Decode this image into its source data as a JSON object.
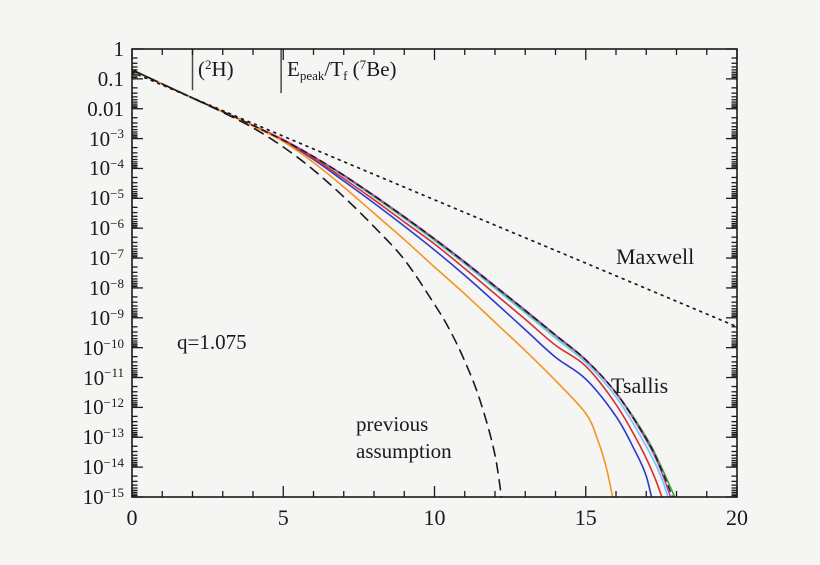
{
  "chart_data": {
    "type": "line",
    "title": "",
    "xlabel": "",
    "ylabel": "",
    "xlim": [
      0,
      20
    ],
    "ylog_lim": [
      -15,
      0
    ],
    "grid": false,
    "x_ticks": [
      0,
      5,
      10,
      15,
      20
    ],
    "x_minor_step": 1,
    "y_tick_labels": [
      {
        "t": "1"
      },
      {
        "t": "0.1"
      },
      {
        "t": "0.01"
      },
      {
        "base": "10",
        "exp": "−3"
      },
      {
        "base": "10",
        "exp": "−4"
      },
      {
        "base": "10",
        "exp": "−5"
      },
      {
        "base": "10",
        "exp": "−6"
      },
      {
        "base": "10",
        "exp": "−7"
      },
      {
        "base": "10",
        "exp": "−8"
      },
      {
        "base": "10",
        "exp": "−9"
      },
      {
        "base": "10",
        "exp": "−10"
      },
      {
        "base": "10",
        "exp": "−11"
      },
      {
        "base": "10",
        "exp": "−12"
      },
      {
        "base": "10",
        "exp": "−13"
      },
      {
        "base": "10",
        "exp": "−14"
      },
      {
        "base": "10",
        "exp": "−15"
      }
    ],
    "annotations": {
      "q_label": "q=1.075",
      "maxwell_label": "Maxwell",
      "tsallis_label": "Tsallis",
      "prev_line1": "previous",
      "prev_line2": "assumption",
      "marker_h2": {
        "parts": [
          {
            "t": "("
          },
          {
            "sup": "2"
          },
          {
            "t": "H)"
          }
        ]
      },
      "marker_epeak": {
        "parts": [
          {
            "t": "E"
          },
          {
            "sub": "peak"
          },
          {
            "t": "/T"
          },
          {
            "sub": "f"
          },
          {
            "t": " ("
          },
          {
            "sup": "7"
          },
          {
            "t": "Be)"
          }
        ]
      }
    },
    "markers": [
      {
        "name": "gamow-peak-2H",
        "x": 2.0,
        "log10_top": 0,
        "log10_bottom": -1.38
      },
      {
        "name": "gamow-peak-7Be",
        "x": 4.93,
        "log10_top": 0,
        "log10_bottom": -1.48
      }
    ],
    "series": [
      {
        "name": "tsallis-cyan",
        "color": "#6fcaf2",
        "dash": "",
        "width": 1.6,
        "points": [
          [
            0,
            -0.7
          ],
          [
            1,
            -1.17
          ],
          [
            2,
            -1.64
          ],
          [
            3,
            -2.1
          ],
          [
            4,
            -2.56
          ],
          [
            5,
            -3.04
          ],
          [
            6,
            -3.62
          ],
          [
            7,
            -4.26
          ],
          [
            8,
            -4.95
          ],
          [
            9,
            -5.67
          ],
          [
            10,
            -6.42
          ],
          [
            11,
            -7.2
          ],
          [
            12,
            -8.02
          ],
          [
            13,
            -8.84
          ],
          [
            14,
            -9.68
          ],
          [
            15,
            -10.5
          ],
          [
            16,
            -11.65
          ],
          [
            17,
            -13.3
          ],
          [
            17.5,
            -14.35
          ],
          [
            17.9,
            -15.6
          ]
        ]
      },
      {
        "name": "tsallis-green",
        "color": "#3ba43a",
        "dash": "",
        "width": 1.6,
        "points": [
          [
            0,
            -0.7
          ],
          [
            1,
            -1.17
          ],
          [
            2,
            -1.64
          ],
          [
            3,
            -2.1
          ],
          [
            4,
            -2.56
          ],
          [
            5,
            -3.04
          ],
          [
            6,
            -3.61
          ],
          [
            7,
            -4.24
          ],
          [
            8,
            -4.93
          ],
          [
            9,
            -5.64
          ],
          [
            10,
            -6.38
          ],
          [
            11,
            -7.15
          ],
          [
            12,
            -7.96
          ],
          [
            13,
            -8.78
          ],
          [
            14,
            -9.6
          ],
          [
            15,
            -10.42
          ],
          [
            16,
            -11.5
          ],
          [
            17,
            -13.0
          ],
          [
            17.5,
            -14.0
          ],
          [
            18.2,
            -15.6
          ]
        ]
      },
      {
        "name": "tsallis-magenta",
        "color": "#bf3ec6",
        "dash": "",
        "width": 1.6,
        "points": [
          [
            0,
            -0.7
          ],
          [
            1,
            -1.17
          ],
          [
            2,
            -1.64
          ],
          [
            3,
            -2.1
          ],
          [
            4,
            -2.56
          ],
          [
            5,
            -3.03
          ],
          [
            6,
            -3.6
          ],
          [
            7,
            -4.22
          ],
          [
            8,
            -4.9
          ],
          [
            9,
            -5.61
          ],
          [
            10,
            -6.35
          ],
          [
            11,
            -7.12
          ],
          [
            12,
            -7.93
          ],
          [
            13,
            -8.74
          ],
          [
            14,
            -9.57
          ],
          [
            15,
            -10.4
          ],
          [
            16,
            -11.52
          ],
          [
            17,
            -13.1
          ],
          [
            17.5,
            -14.15
          ],
          [
            18.0,
            -15.6
          ]
        ]
      },
      {
        "name": "tsallis-blue",
        "color": "#2b3bd0",
        "dash": "",
        "width": 1.6,
        "points": [
          [
            0,
            -0.7
          ],
          [
            1,
            -1.17
          ],
          [
            2,
            -1.64
          ],
          [
            3,
            -2.1
          ],
          [
            4,
            -2.57
          ],
          [
            5,
            -3.07
          ],
          [
            6,
            -3.7
          ],
          [
            7,
            -4.42
          ],
          [
            8,
            -5.16
          ],
          [
            9,
            -5.93
          ],
          [
            10,
            -6.73
          ],
          [
            11,
            -7.58
          ],
          [
            12,
            -8.48
          ],
          [
            13,
            -9.4
          ],
          [
            14,
            -10.32
          ],
          [
            15,
            -11.05
          ],
          [
            16,
            -12.3
          ],
          [
            16.6,
            -13.4
          ],
          [
            17,
            -14.3
          ],
          [
            17.3,
            -15.6
          ]
        ]
      },
      {
        "name": "tsallis-red",
        "color": "#d62f2f",
        "dash": "",
        "width": 1.6,
        "points": [
          [
            0,
            -0.7
          ],
          [
            1,
            -1.17
          ],
          [
            2,
            -1.64
          ],
          [
            3,
            -2.1
          ],
          [
            4,
            -2.56
          ],
          [
            5,
            -3.05
          ],
          [
            6,
            -3.66
          ],
          [
            7,
            -4.34
          ],
          [
            8,
            -5.05
          ],
          [
            9,
            -5.79
          ],
          [
            10,
            -6.53
          ],
          [
            11,
            -7.35
          ],
          [
            12,
            -8.2
          ],
          [
            13,
            -9.05
          ],
          [
            14,
            -9.92
          ],
          [
            15,
            -10.62
          ],
          [
            16,
            -11.9
          ],
          [
            16.8,
            -13.3
          ],
          [
            17.3,
            -14.4
          ],
          [
            17.75,
            -15.7
          ]
        ]
      },
      {
        "name": "tsallis-orange",
        "color": "#f59420",
        "dash": "",
        "width": 1.6,
        "points": [
          [
            0,
            -0.7
          ],
          [
            1,
            -1.17
          ],
          [
            2,
            -1.64
          ],
          [
            3,
            -2.1
          ],
          [
            4,
            -2.58
          ],
          [
            5,
            -3.1
          ],
          [
            6,
            -3.8
          ],
          [
            7,
            -4.62
          ],
          [
            8,
            -5.5
          ],
          [
            9,
            -6.38
          ],
          [
            10,
            -7.3
          ],
          [
            11,
            -8.2
          ],
          [
            12,
            -9.15
          ],
          [
            13,
            -10.1
          ],
          [
            14,
            -11.1
          ],
          [
            15,
            -12.2
          ],
          [
            15.4,
            -13.1
          ],
          [
            15.7,
            -14.1
          ],
          [
            16.0,
            -15.6
          ]
        ]
      },
      {
        "name": "tsallis-black-dashed",
        "color": "#1a1a1a",
        "dash": "6 5",
        "width": 1.4,
        "points": [
          [
            0,
            -0.7
          ],
          [
            2,
            -1.64
          ],
          [
            4,
            -2.56
          ],
          [
            6,
            -3.6
          ],
          [
            8,
            -4.91
          ],
          [
            10,
            -6.36
          ],
          [
            12,
            -7.94
          ],
          [
            14,
            -9.58
          ],
          [
            15,
            -10.41
          ],
          [
            16,
            -11.51
          ],
          [
            17,
            -13.05
          ],
          [
            17.5,
            -14.08
          ],
          [
            18.1,
            -15.6
          ]
        ]
      },
      {
        "name": "previous-assumption",
        "color": "#1a1a1a",
        "dash": "10 7",
        "width": 1.6,
        "points": [
          [
            0,
            -0.7
          ],
          [
            1,
            -1.17
          ],
          [
            2,
            -1.64
          ],
          [
            3,
            -2.12
          ],
          [
            4,
            -2.64
          ],
          [
            5,
            -3.28
          ],
          [
            6,
            -4.05
          ],
          [
            7,
            -4.95
          ],
          [
            8,
            -5.95
          ],
          [
            9,
            -7.05
          ],
          [
            10,
            -8.55
          ],
          [
            10.5,
            -9.4
          ],
          [
            11,
            -10.45
          ],
          [
            11.5,
            -11.75
          ],
          [
            12,
            -13.6
          ],
          [
            12.3,
            -15.7
          ]
        ]
      },
      {
        "name": "maxwell",
        "color": "#1a1a1a",
        "dash": "1.8 5.2",
        "width": 1.7,
        "points": [
          [
            0,
            -0.78
          ],
          [
            5,
            -2.92
          ],
          [
            10,
            -5.05
          ],
          [
            15,
            -7.17
          ],
          [
            20,
            -9.3
          ]
        ]
      }
    ]
  },
  "layout_colors": {
    "background": "#f5f5f3",
    "frame": "#1a1a1a",
    "marker_line": "#4a4a4a"
  }
}
